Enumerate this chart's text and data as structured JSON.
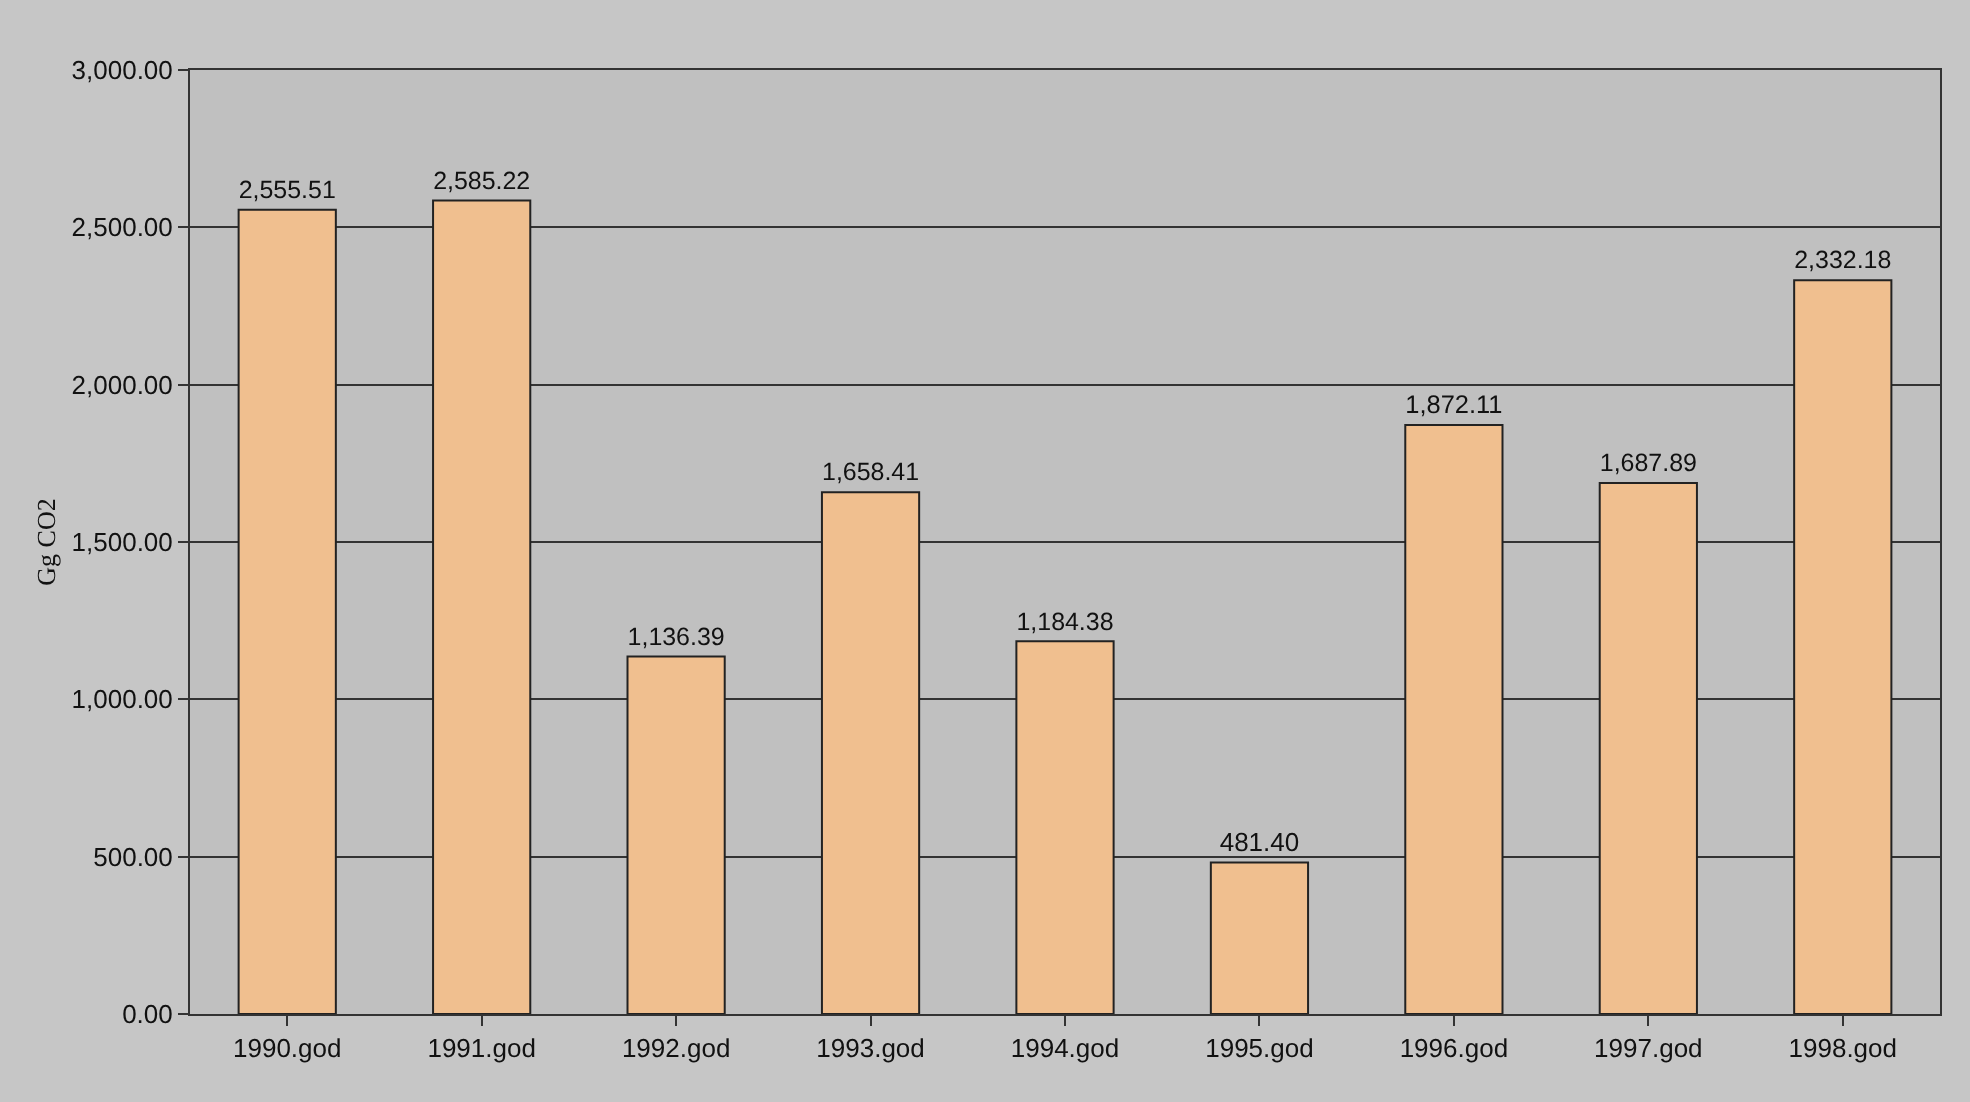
{
  "chart_data": {
    "type": "bar",
    "ylabel": "Gg CO2",
    "categories": [
      "1990.god",
      "1991.god",
      "1992.god",
      "1993.god",
      "1994.god",
      "1995.god",
      "1996.god",
      "1997.god",
      "1998.god"
    ],
    "values": [
      2555.51,
      2585.22,
      1136.39,
      1658.41,
      1184.38,
      481.4,
      1872.11,
      1687.89,
      2332.18
    ],
    "value_labels": [
      "2,555.51",
      "2,585.22",
      "1,136.39",
      "1,658.41",
      "1,184.38",
      "481.40",
      "1,872.11",
      "1,687.89",
      "2,332.18"
    ],
    "color": "#f0bf8f",
    "ylim": [
      0,
      3000
    ],
    "yticks": [
      {
        "value": 0,
        "label": "0.00"
      },
      {
        "value": 500,
        "label": "500.00"
      },
      {
        "value": 1000,
        "label": "1,000.00"
      },
      {
        "value": 1500,
        "label": "1,500.00"
      },
      {
        "value": 2000,
        "label": "2,000.00"
      },
      {
        "value": 2500,
        "label": "2,500.00"
      },
      {
        "value": 3000,
        "label": "3,000.00"
      }
    ],
    "grid": "y",
    "legend": false
  }
}
